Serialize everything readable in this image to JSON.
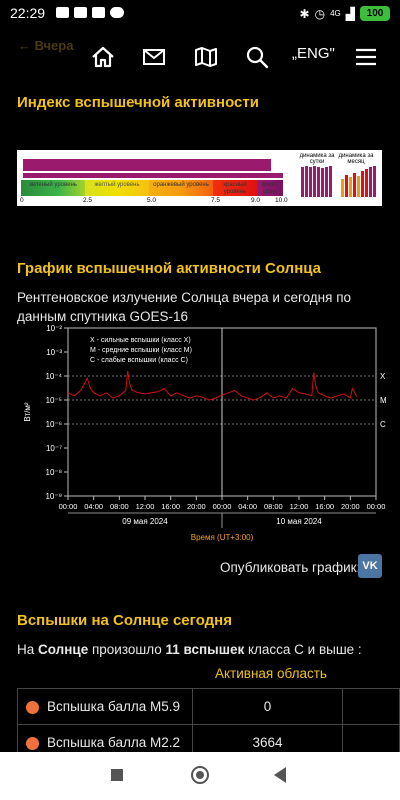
{
  "status": {
    "time": "22:29",
    "battery": "100",
    "network": "4G"
  },
  "header": {
    "back_label": "← Вчера",
    "lang_label": "„ENG\""
  },
  "flare_index": {
    "title": "Индекс вспышечной активности",
    "levels": [
      {
        "label": "зеленый уровень",
        "color": "#3cb54a"
      },
      {
        "label": "желтый уровень",
        "color": "#f0e000"
      },
      {
        "label": "оранжевый уровень",
        "color": "#f59a10"
      },
      {
        "label": "красный уровень",
        "color": "#e01010"
      },
      {
        "label": "фиол. уров.",
        "color": "#9a1a6e"
      }
    ],
    "ticks": [
      "0",
      "2.5",
      "5.0",
      "7.5",
      "9.0",
      "10.0"
    ],
    "day_label": "динамика за сутки",
    "month_label": "динамика за месяц",
    "value": 9.3
  },
  "solar_chart": {
    "title": "График вспышечной активности Солнца",
    "description": "Рентгеновское излучение Солнца вчера и сегодня по данным спутника GOES-16"
  },
  "chart_data": {
    "type": "line",
    "title": "",
    "ylabel": "Вт/м²",
    "xlabel": "Время (UT+3:00)",
    "y_log": true,
    "ylim": [
      1e-09,
      0.01
    ],
    "y_ticks": [
      "10⁻²",
      "10⁻³",
      "10⁻⁴",
      "10⁻⁵",
      "10⁻⁶",
      "10⁻⁷",
      "10⁻⁸",
      "10⁻⁹"
    ],
    "x_ticks": [
      "00:00",
      "04:00",
      "08:00",
      "12:00",
      "16:00",
      "20:00",
      "00:00",
      "04:00",
      "08:00",
      "12:00",
      "16:00",
      "20:00",
      "00:00"
    ],
    "date_labels": [
      "09 мая 2024",
      "10 мая 2024"
    ],
    "class_labels": [
      "X",
      "M",
      "C"
    ],
    "legend": [
      "X - сильные вспышки (класс X)",
      "M - средние вспышки (класс M)",
      "C - слабые вспышки (класс C)"
    ],
    "series": [
      {
        "x": [
          0,
          1,
          2,
          3,
          3.5,
          4,
          5,
          6,
          7,
          8,
          9,
          9.3,
          9.6,
          10,
          11,
          12,
          13,
          14,
          15,
          16,
          17,
          18,
          19,
          20,
          21,
          22,
          23,
          24,
          25,
          26,
          27,
          28,
          29,
          30,
          31,
          32,
          33,
          34,
          35,
          36,
          37,
          38,
          38.3,
          38.6,
          39,
          40,
          41,
          42,
          43,
          44,
          44.3,
          45
        ],
        "y": [
          2e-05,
          1.5e-05,
          2.5e-05,
          8e-05,
          3e-05,
          2e-05,
          1.5e-05,
          2e-05,
          1.2e-05,
          1.5e-05,
          2.5e-05,
          0.00016,
          5e-05,
          2.5e-05,
          2e-05,
          1.8e-05,
          2e-05,
          2.2e-05,
          3e-05,
          1.5e-05,
          2e-05,
          1.5e-05,
          1.2e-05,
          1.5e-05,
          1.3e-05,
          1e-05,
          1.2e-05,
          1.6e-05,
          2e-05,
          2.5e-05,
          1.5e-05,
          1.2e-05,
          1e-05,
          1.3e-05,
          2e-05,
          1.2e-05,
          1.5e-05,
          1.2e-05,
          3e-05,
          2e-05,
          1.8e-05,
          1.5e-05,
          0.00014,
          4e-05,
          2e-05,
          1.5e-05,
          1.2e-05,
          1.5e-05,
          1.8e-05,
          1.2e-05,
          3e-05,
          1.4e-05
        ]
      }
    ]
  },
  "publish_label": "Опубликовать график:",
  "vk_label": "VK",
  "today": {
    "title": "Вспышки на Солнце сегодня",
    "summary_prefix": "На ",
    "summary_sun": "Солнце",
    "summary_mid": " произошло ",
    "summary_count": "11 вспышек",
    "summary_suffix": " класса C и выше :",
    "column_region": "Активная область",
    "rows": [
      {
        "name": "Вспышка балла M5.9",
        "region": "0"
      },
      {
        "name": "Вспышка балла M2.2",
        "region": "3664"
      }
    ]
  }
}
